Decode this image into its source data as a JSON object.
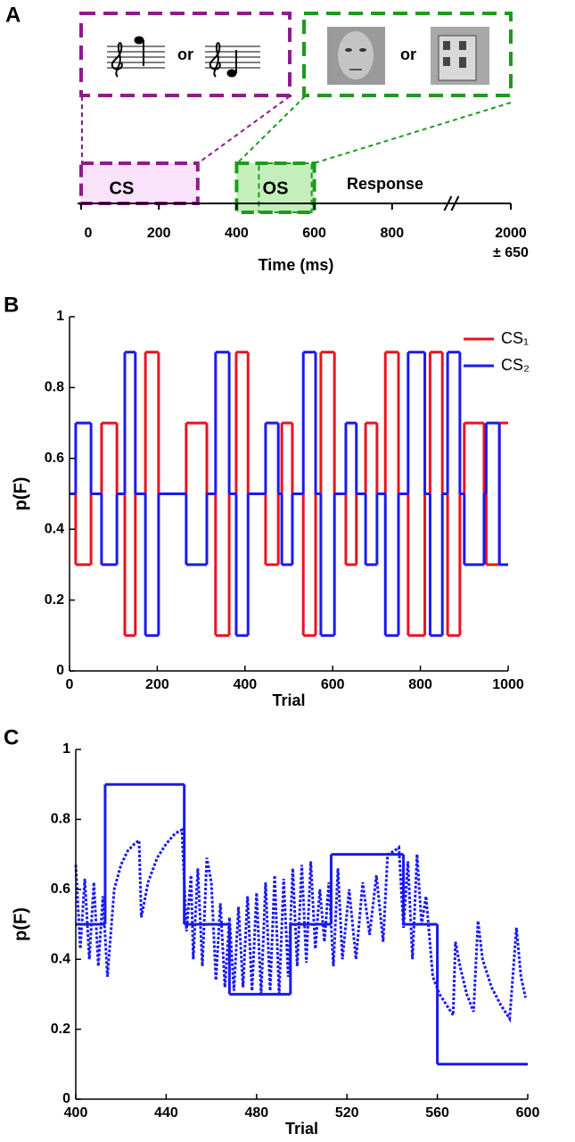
{
  "chart_data": [
    {
      "type": "timeline",
      "panel_label": "A",
      "xlabel": "Time (ms)",
      "xticks": [
        0,
        200,
        400,
        600,
        800,
        2000
      ],
      "tick_note": "± 650",
      "events": [
        {
          "name": "CS",
          "start": 0,
          "end": 300,
          "color": "#8e1c8e",
          "fill": "#fbe2fb"
        },
        {
          "name": "OS",
          "start": 400,
          "end": 600,
          "color": "#1e9a1e",
          "fill": "#c4efbc"
        }
      ],
      "response_label": "Response",
      "choice_word": "or"
    },
    {
      "type": "line",
      "panel_label": "B",
      "xlabel": "Trial",
      "ylabel": "p(F)",
      "step": true,
      "xlim": [
        0,
        1000
      ],
      "ylim": [
        0,
        1
      ],
      "xticks": [
        0,
        200,
        400,
        600,
        800,
        1000
      ],
      "yticks": [
        0,
        0.2,
        0.4,
        0.6,
        0.8,
        1
      ],
      "legend": "upper right",
      "x": [
        0,
        14,
        49,
        73,
        108,
        126,
        150,
        173,
        203,
        266,
        313,
        333,
        364,
        380,
        407,
        447,
        476,
        484,
        508,
        533,
        561,
        573,
        604,
        630,
        654,
        675,
        701,
        720,
        750,
        772,
        810,
        822,
        850,
        862,
        890,
        900,
        945,
        950,
        980,
        1000
      ],
      "series": [
        {
          "name": "CS₁",
          "color": "#e8141e",
          "values": [
            0.5,
            0.3,
            0.5,
            0.7,
            0.5,
            0.1,
            0.5,
            0.9,
            0.5,
            0.7,
            0.5,
            0.1,
            0.5,
            0.9,
            0.5,
            0.3,
            0.5,
            0.7,
            0.5,
            0.1,
            0.5,
            0.9,
            0.5,
            0.3,
            0.5,
            0.7,
            0.5,
            0.9,
            0.5,
            0.1,
            0.5,
            0.9,
            0.5,
            0.1,
            0.5,
            0.7,
            0.5,
            0.3,
            0.7,
            0.7
          ]
        },
        {
          "name": "CS₂",
          "color": "#1a1aee",
          "values": [
            0.5,
            0.7,
            0.5,
            0.3,
            0.5,
            0.9,
            0.5,
            0.1,
            0.5,
            0.3,
            0.5,
            0.9,
            0.5,
            0.1,
            0.5,
            0.7,
            0.5,
            0.3,
            0.5,
            0.9,
            0.5,
            0.1,
            0.5,
            0.7,
            0.5,
            0.3,
            0.5,
            0.1,
            0.5,
            0.9,
            0.5,
            0.1,
            0.5,
            0.9,
            0.5,
            0.3,
            0.5,
            0.7,
            0.3,
            0.3
          ]
        }
      ]
    },
    {
      "type": "line",
      "panel_label": "C",
      "xlabel": "Trial",
      "ylabel": "p(F)",
      "xlim": [
        400,
        600
      ],
      "ylim": [
        0,
        1
      ],
      "xticks": [
        400,
        440,
        480,
        520,
        560,
        600
      ],
      "yticks": [
        0,
        0.2,
        0.4,
        0.6,
        0.8,
        1
      ],
      "series": [
        {
          "color": "#1a1aee",
          "step": true,
          "x": [
            400,
            413,
            448,
            468,
            495,
            513,
            545,
            560,
            600
          ],
          "values": [
            0.5,
            0.9,
            0.5,
            0.3,
            0.5,
            0.7,
            0.5,
            0.1,
            0.1
          ]
        },
        {
          "color": "#1a1aee",
          "line_style": "dotted",
          "x": [
            400,
            402,
            404,
            406,
            408,
            410,
            412,
            414,
            417,
            420,
            423,
            426,
            428,
            429,
            432,
            436,
            440,
            444,
            447,
            449,
            451,
            452,
            454,
            456,
            458,
            460,
            462,
            464,
            466,
            468,
            470,
            472,
            474,
            476,
            478,
            480,
            482,
            484,
            486,
            488,
            490,
            492,
            494,
            496,
            498,
            500,
            502,
            504,
            506,
            508,
            510,
            512,
            514,
            516,
            518,
            521,
            524,
            527,
            530,
            533,
            536,
            538,
            541,
            543,
            545,
            547,
            549,
            551,
            553,
            555,
            558,
            561,
            564,
            567,
            568,
            570,
            573,
            576,
            578,
            580,
            584,
            588,
            592,
            595,
            597,
            599
          ],
          "values": [
            0.67,
            0.43,
            0.63,
            0.4,
            0.62,
            0.38,
            0.58,
            0.35,
            0.6,
            0.67,
            0.71,
            0.73,
            0.74,
            0.52,
            0.62,
            0.69,
            0.73,
            0.76,
            0.77,
            0.48,
            0.64,
            0.4,
            0.66,
            0.38,
            0.69,
            0.62,
            0.34,
            0.56,
            0.32,
            0.52,
            0.31,
            0.55,
            0.32,
            0.58,
            0.31,
            0.59,
            0.3,
            0.62,
            0.31,
            0.64,
            0.3,
            0.63,
            0.35,
            0.66,
            0.38,
            0.67,
            0.39,
            0.68,
            0.43,
            0.6,
            0.45,
            0.62,
            0.38,
            0.66,
            0.4,
            0.6,
            0.4,
            0.62,
            0.47,
            0.64,
            0.45,
            0.7,
            0.71,
            0.72,
            0.49,
            0.68,
            0.4,
            0.7,
            0.5,
            0.58,
            0.35,
            0.3,
            0.27,
            0.24,
            0.45,
            0.38,
            0.3,
            0.25,
            0.51,
            0.4,
            0.32,
            0.27,
            0.23,
            0.49,
            0.35,
            0.29
          ]
        }
      ]
    }
  ]
}
